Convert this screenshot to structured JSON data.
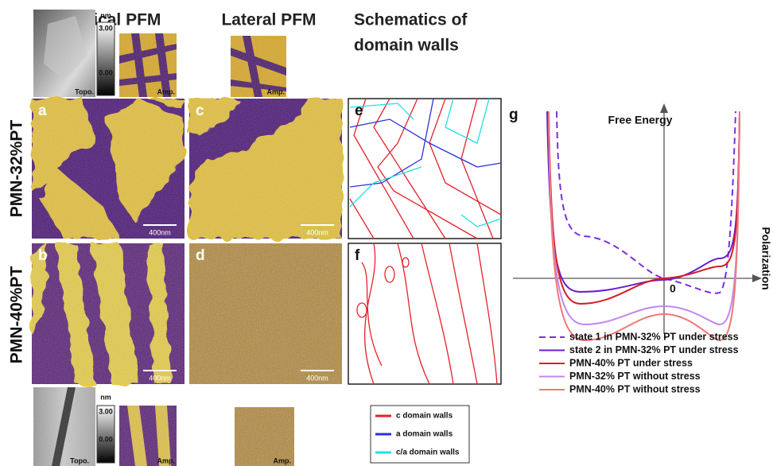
{
  "columns": [
    "Vertical PFM",
    "Lateral PFM"
  ],
  "schematics_title": [
    "Schematics of",
    "domain walls"
  ],
  "rows": [
    "PMN-32%PT",
    "PMN-40%PT"
  ],
  "panels": [
    "a",
    "b",
    "c",
    "d",
    "e",
    "f",
    "g"
  ],
  "inset": {
    "topo": "Topo.",
    "amp": "Amp.",
    "unit": "nm",
    "bar_top": "3.00",
    "bar_mid": "0.00",
    "bar_bottom": "-3.00"
  },
  "scale_bar": "400nm",
  "wall_legend": [
    {
      "label": "c domain walls",
      "color": "#e8202a"
    },
    {
      "label": "a domain walls",
      "color": "#2a32d8"
    },
    {
      "label": "c/a domain walls",
      "color": "#20e0e8"
    }
  ],
  "energy_plot": {
    "y_label": "Free Energy",
    "x_label": "Polarization",
    "origin": "0",
    "series": [
      {
        "name": "state 1 in PMN-32% PT under stress",
        "color": "#7a2ee0",
        "dashed": true
      },
      {
        "name": "state 2 in PMN-32% PT under stress",
        "color": "#6a1ed0",
        "dashed": false
      },
      {
        "name": "PMN-40% PT under stress",
        "color": "#d81c24",
        "dashed": false
      },
      {
        "name": "PMN-32% PT without stress",
        "color": "#c088f0",
        "dashed": false
      },
      {
        "name": "PMN-40% PT without stress",
        "color": "#f07878",
        "dashed": false
      }
    ]
  }
}
